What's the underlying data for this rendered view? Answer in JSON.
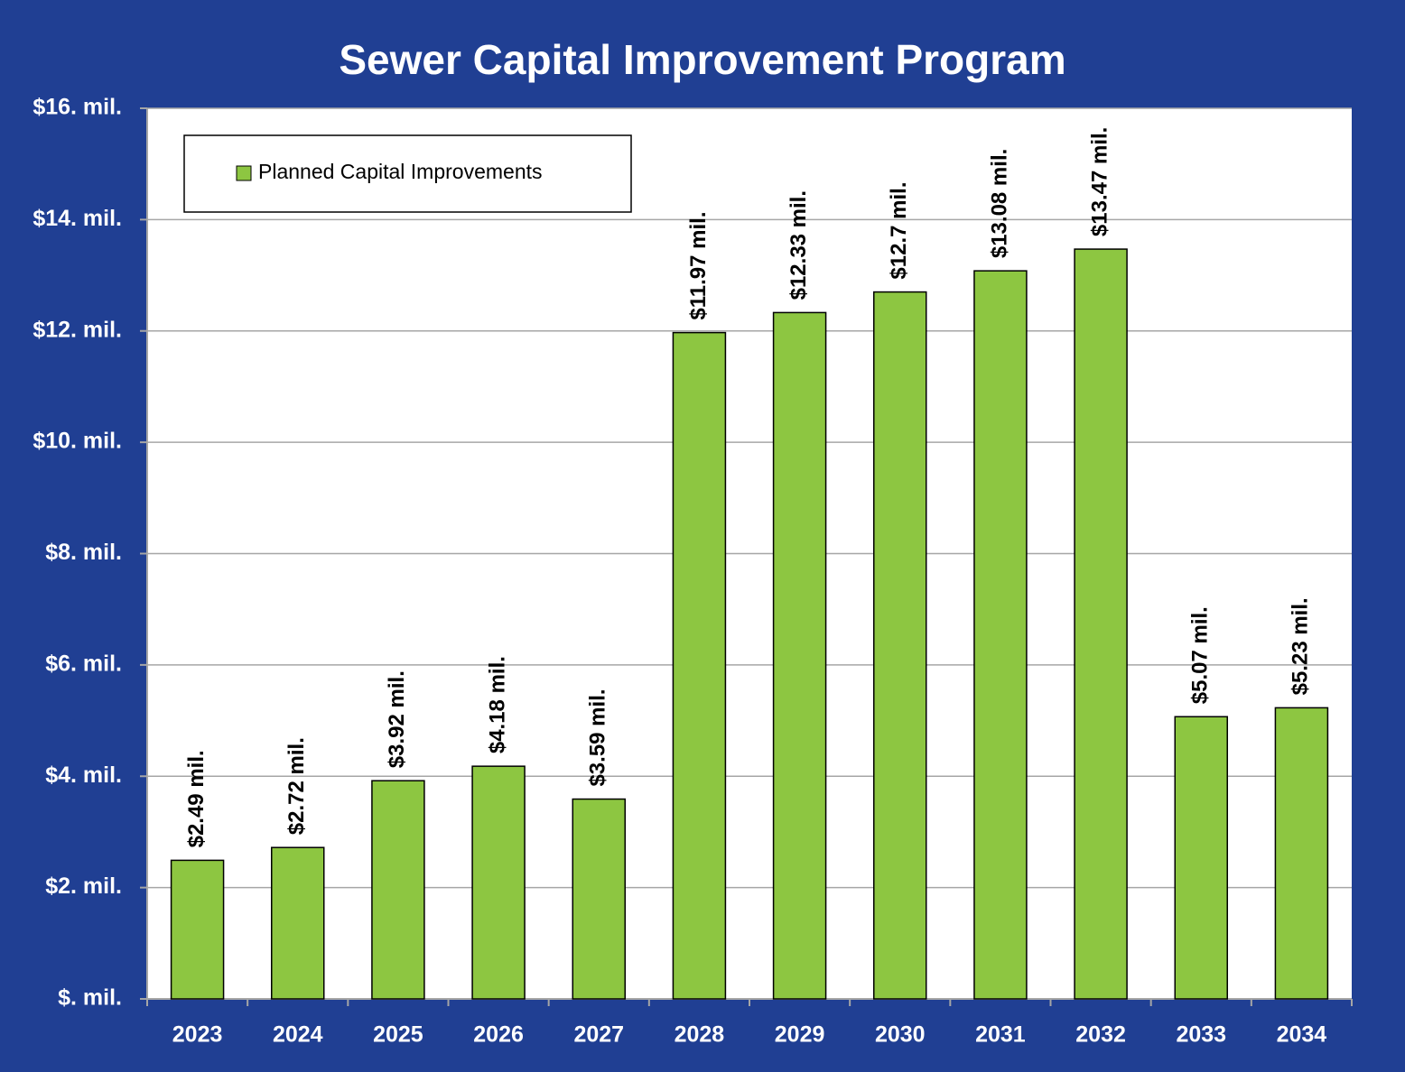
{
  "chart_data": {
    "type": "bar",
    "title": "Sewer Capital Improvement Program",
    "categories": [
      "2023",
      "2024",
      "2025",
      "2026",
      "2027",
      "2028",
      "2029",
      "2030",
      "2031",
      "2032",
      "2033",
      "2034"
    ],
    "series": [
      {
        "name": "Planned Capital Improvements",
        "color": "#8dc641",
        "values": [
          2.49,
          2.72,
          3.92,
          4.18,
          3.59,
          11.97,
          12.33,
          12.7,
          13.08,
          13.47,
          5.07,
          5.23
        ],
        "value_labels": [
          "$2.49 mil.",
          "$2.72 mil.",
          "$3.92 mil.",
          "$4.18 mil.",
          "$3.59 mil.",
          "$11.97 mil.",
          "$12.33 mil.",
          "$12.7 mil.",
          "$13.08 mil.",
          "$13.47 mil.",
          "$5.07 mil.",
          "$5.23 mil."
        ]
      }
    ],
    "ylim": [
      0,
      16
    ],
    "yticks": [
      {
        "value": 0,
        "label": "$. mil."
      },
      {
        "value": 2,
        "label": "$2. mil."
      },
      {
        "value": 4,
        "label": "$4. mil."
      },
      {
        "value": 6,
        "label": "$6. mil."
      },
      {
        "value": 8,
        "label": "$8. mil."
      },
      {
        "value": 10,
        "label": "$10. mil."
      },
      {
        "value": 12,
        "label": "$12. mil."
      },
      {
        "value": 14,
        "label": "$14. mil."
      },
      {
        "value": 16,
        "label": "$16. mil."
      }
    ],
    "grid": true,
    "legend": "upper left"
  }
}
